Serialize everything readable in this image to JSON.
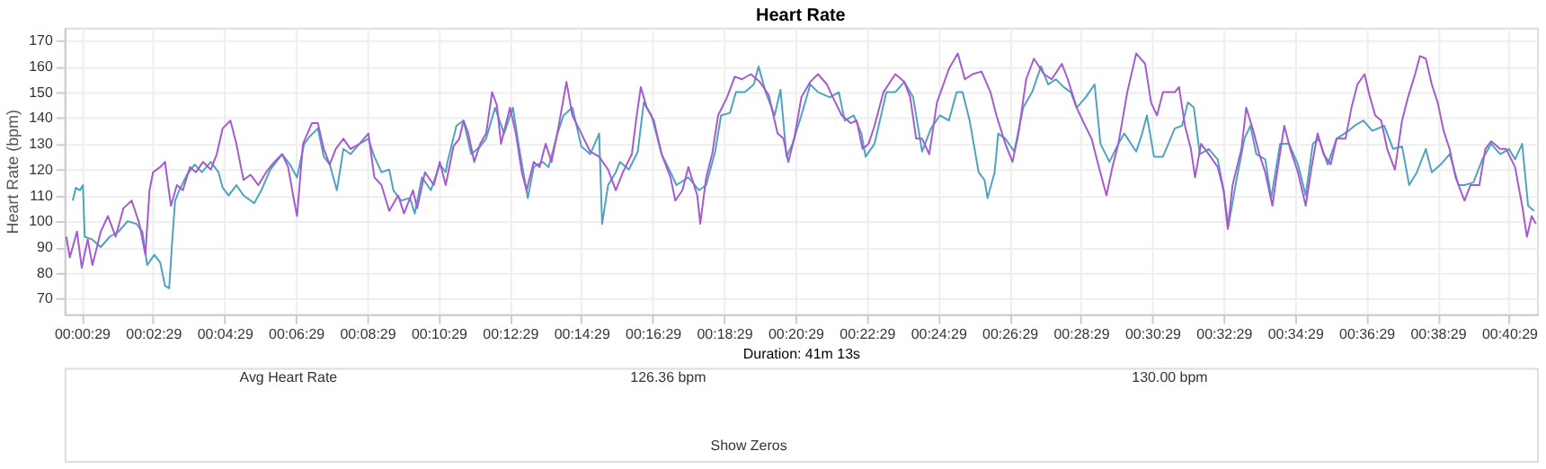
{
  "chart_data": {
    "type": "line",
    "title": "Heart Rate",
    "xlabel": "Duration: 41m 13s",
    "ylabel": "Heart Rate (bpm)",
    "grid": true,
    "xlim": [
      0,
      2476
    ],
    "ylim": [
      64,
      175
    ],
    "yticks": [
      70,
      80,
      90,
      100,
      110,
      120,
      130,
      140,
      150,
      160,
      170
    ],
    "xticks": [
      {
        "value": 29,
        "label": "00:00:29"
      },
      {
        "value": 149,
        "label": "00:02:29"
      },
      {
        "value": 269,
        "label": "00:04:29"
      },
      {
        "value": 389,
        "label": "00:06:29"
      },
      {
        "value": 509,
        "label": "00:08:29"
      },
      {
        "value": 629,
        "label": "00:10:29"
      },
      {
        "value": 749,
        "label": "00:12:29"
      },
      {
        "value": 869,
        "label": "00:14:29"
      },
      {
        "value": 989,
        "label": "00:16:29"
      },
      {
        "value": 1109,
        "label": "00:18:29"
      },
      {
        "value": 1229,
        "label": "00:20:29"
      },
      {
        "value": 1349,
        "label": "00:22:29"
      },
      {
        "value": 1469,
        "label": "00:24:29"
      },
      {
        "value": 1589,
        "label": "00:26:29"
      },
      {
        "value": 1709,
        "label": "00:28:29"
      },
      {
        "value": 1829,
        "label": "00:30:29"
      },
      {
        "value": 1949,
        "label": "00:32:29"
      },
      {
        "value": 2069,
        "label": "00:34:29"
      },
      {
        "value": 2189,
        "label": "00:36:29"
      },
      {
        "value": 2309,
        "label": "00:38:29"
      },
      {
        "value": 2429,
        "label": "00:40:29"
      }
    ],
    "annotations": [
      "Show Zeros",
      "Avg Heart Rate",
      "126.36 bpm",
      "130.00 bpm"
    ],
    "series": [
      {
        "color": "#4fa3bf",
        "x": [
          14,
          19,
          26,
          31,
          34,
          46,
          61,
          76,
          91,
          106,
          121,
          131,
          139,
          151,
          161,
          169,
          176,
          181,
          186,
          193,
          206,
          219,
          231,
          246,
          259,
          266,
          276,
          289,
          301,
          319,
          331,
          346,
          366,
          379,
          391,
          403,
          413,
          426,
          436,
          446,
          458,
          469,
          481,
          496,
          511,
          521,
          533,
          546,
          553,
          566,
          581,
          589,
          601,
          616,
          631,
          641,
          644,
          659,
          671,
          684,
          699,
          709,
          724,
          739,
          754,
          764,
          779,
          789,
          804,
          814,
          829,
          839,
          854,
          869,
          884,
          899,
          904,
          914,
          927,
          934,
          949,
          964,
          974,
          987,
          1004,
          1019,
          1029,
          1049,
          1067,
          1079,
          1094,
          1104,
          1119,
          1129,
          1144,
          1159,
          1167,
          1179,
          1194,
          1204,
          1214,
          1224,
          1239,
          1254,
          1267,
          1287,
          1302,
          1312,
          1327,
          1340,
          1347,
          1362,
          1382,
          1397,
          1412,
          1427,
          1442,
          1457,
          1472,
          1487,
          1500,
          1510,
          1522,
          1537,
          1547,
          1552,
          1564,
          1570,
          1582,
          1597,
          1612,
          1627,
          1642,
          1654,
          1667,
          1680,
          1692,
          1702,
          1717,
          1732,
          1742,
          1757,
          1772,
          1782,
          1802,
          1812,
          1820,
          1832,
          1847,
          1867,
          1879,
          1889,
          1899,
          1909,
          1924,
          1939,
          1949,
          1957,
          1969,
          1984,
          1994,
          2004,
          2019,
          2029,
          2044,
          2059,
          2074,
          2087,
          2099,
          2109,
          2124,
          2139,
          2159,
          2169,
          2184,
          2199,
          2219,
          2234,
          2249,
          2261,
          2274,
          2289,
          2299,
          2314,
          2329,
          2344,
          2354,
          2369,
          2384,
          2399,
          2414,
          2429,
          2439,
          2451,
          2461,
          2471
        ],
        "values": [
          108,
          113,
          112,
          114,
          94,
          93,
          90,
          94,
          96,
          100,
          99,
          96,
          83,
          87,
          84,
          75,
          74,
          92,
          108,
          112,
          118,
          122,
          119,
          123,
          119,
          113,
          110,
          114,
          110,
          107,
          112,
          120,
          126,
          122,
          117,
          130,
          133,
          136,
          125,
          122,
          112,
          128,
          126,
          130,
          132,
          125,
          119,
          120,
          112,
          108,
          109,
          103,
          117,
          112,
          122,
          119,
          123,
          137,
          139,
          126,
          129,
          132,
          144,
          134,
          144,
          129,
          109,
          121,
          123,
          121,
          134,
          141,
          144,
          129,
          126,
          134,
          99,
          114,
          119,
          123,
          120,
          127,
          146,
          141,
          126,
          119,
          114,
          117,
          112,
          114,
          127,
          141,
          142,
          150,
          150,
          153,
          160,
          150,
          141,
          151,
          125,
          130,
          141,
          153,
          150,
          148,
          150,
          139,
          141,
          134,
          125,
          130,
          150,
          150,
          154,
          148,
          127,
          136,
          141,
          139,
          150,
          150,
          139,
          119,
          116,
          109,
          119,
          134,
          132,
          127,
          144,
          150,
          160,
          153,
          155,
          152,
          150,
          144,
          148,
          153,
          130,
          123,
          130,
          134,
          127,
          134,
          141,
          125,
          125,
          136,
          137,
          146,
          144,
          126,
          128,
          124,
          112,
          98,
          114,
          132,
          137,
          126,
          124,
          109,
          130,
          130,
          122,
          110,
          130,
          132,
          122,
          132,
          135,
          137,
          139,
          135,
          137,
          128,
          129,
          114,
          119,
          128,
          119,
          122,
          126,
          114,
          114,
          115,
          124,
          130,
          126,
          128,
          124,
          130,
          106,
          104
        ]
      },
      {
        "color": "#a45bd0",
        "x": [
          3,
          9,
          21,
          29,
          39,
          47,
          61,
          73,
          86,
          99,
          113,
          126,
          136,
          143,
          149,
          161,
          169,
          179,
          189,
          199,
          211,
          221,
          233,
          246,
          256,
          266,
          279,
          289,
          301,
          313,
          326,
          339,
          353,
          366,
          376,
          386,
          391,
          401,
          416,
          426,
          436,
          446,
          456,
          469,
          481,
          496,
          511,
          521,
          533,
          546,
          561,
          571,
          586,
          593,
          606,
          621,
          631,
          641,
          654,
          664,
          671,
          679,
          689,
          699,
          709,
          719,
          727,
          734,
          749,
          759,
          769,
          777,
          789,
          799,
          809,
          819,
          831,
          844,
          854,
          869,
          884,
          899,
          914,
          927,
          939,
          954,
          961,
          969,
          979,
          991,
          1004,
          1019,
          1027,
          1039,
          1049,
          1064,
          1069,
          1079,
          1089,
          1099,
          1114,
          1127,
          1139,
          1154,
          1169,
          1184,
          1199,
          1209,
          1217,
          1227,
          1239,
          1254,
          1267,
          1282,
          1292,
          1307,
          1322,
          1332,
          1342,
          1352,
          1362,
          1377,
          1397,
          1412,
          1422,
          1432,
          1442,
          1454,
          1467,
          1487,
          1502,
          1514,
          1527,
          1542,
          1557,
          1567,
          1582,
          1594,
          1604,
          1617,
          1630,
          1647,
          1660,
          1677,
          1687,
          1702,
          1712,
          1727,
          1737,
          1752,
          1762,
          1772,
          1787,
          1802,
          1817,
          1827,
          1837,
          1847,
          1867,
          1874,
          1884,
          1894,
          1901,
          1911,
          1924,
          1939,
          1949,
          1956,
          1964,
          1979,
          1987,
          1999,
          2009,
          2019,
          2031,
          2039,
          2051,
          2061,
          2074,
          2087,
          2097,
          2107,
          2117,
          2129,
          2139,
          2154,
          2164,
          2174,
          2186,
          2194,
          2204,
          2214,
          2224,
          2237,
          2249,
          2259,
          2271,
          2279,
          2289,
          2299,
          2309,
          2319,
          2329,
          2339,
          2354,
          2364,
          2379,
          2389,
          2399,
          2414,
          2424,
          2439,
          2451,
          2459,
          2467,
          2474
        ],
        "values": [
          94,
          86,
          96,
          82,
          93,
          83,
          96,
          102,
          94,
          105,
          108,
          99,
          87,
          112,
          119,
          121,
          123,
          106,
          114,
          112,
          121,
          119,
          123,
          120,
          126,
          136,
          139,
          130,
          116,
          118,
          114,
          119,
          123,
          126,
          121,
          108,
          102,
          130,
          138,
          138,
          128,
          122,
          128,
          132,
          128,
          130,
          134,
          117,
          114,
          104,
          110,
          103,
          112,
          105,
          119,
          114,
          123,
          114,
          129,
          132,
          139,
          134,
          123,
          130,
          134,
          150,
          145,
          130,
          144,
          134,
          119,
          112,
          123,
          121,
          130,
          123,
          137,
          154,
          141,
          134,
          127,
          125,
          120,
          112,
          119,
          126,
          139,
          152,
          144,
          139,
          126,
          117,
          108,
          112,
          121,
          110,
          99,
          117,
          126,
          141,
          148,
          156,
          155,
          157,
          154,
          149,
          134,
          132,
          123,
          132,
          148,
          154,
          157,
          153,
          148,
          141,
          138,
          139,
          128,
          130,
          137,
          150,
          157,
          154,
          148,
          132,
          132,
          126,
          146,
          159,
          165,
          155,
          157,
          158,
          150,
          141,
          130,
          123,
          134,
          155,
          163,
          157,
          155,
          161,
          155,
          144,
          139,
          132,
          123,
          110,
          121,
          130,
          150,
          165,
          161,
          146,
          141,
          150,
          150,
          152,
          137,
          128,
          117,
          130,
          126,
          121,
          112,
          97,
          114,
          128,
          144,
          135,
          126,
          119,
          106,
          119,
          137,
          128,
          119,
          106,
          121,
          134,
          126,
          122,
          132,
          132,
          144,
          153,
          157,
          149,
          141,
          139,
          128,
          120,
          139,
          148,
          157,
          164,
          163,
          153,
          146,
          135,
          128,
          117,
          108,
          114,
          114,
          128,
          131,
          128,
          128,
          121,
          106,
          94,
          102,
          99
        ]
      }
    ]
  }
}
